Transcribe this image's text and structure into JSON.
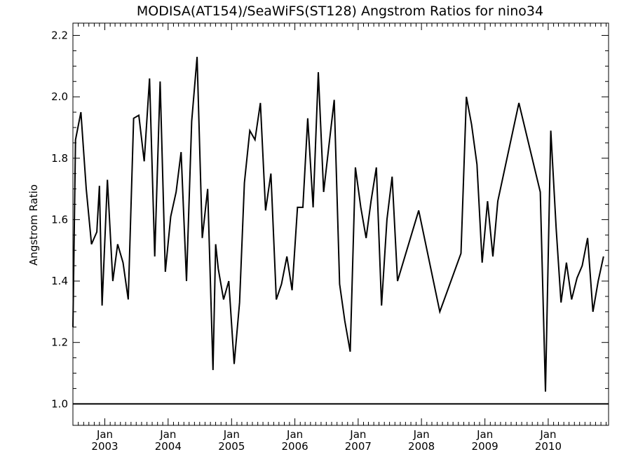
{
  "chart_data": {
    "type": "line",
    "title": "MODISA(AT154)/SeaWiFS(ST128)  Angstrom Ratios for nino34",
    "xlabel": "",
    "ylabel": "Angstrom Ratio",
    "x_unit": "date",
    "xlim": [
      "2002-07-01",
      "2010-12-15"
    ],
    "ylim": [
      0.93,
      2.24
    ],
    "y_ticks": [
      1.0,
      1.2,
      1.4,
      1.6,
      1.8,
      2.0,
      2.2
    ],
    "y_tick_labels": [
      "1.0",
      "1.2",
      "1.4",
      "1.6",
      "1.8",
      "2.0",
      "2.2"
    ],
    "x_ticks": [
      {
        "date": "2003-01-01",
        "month": "Jan",
        "year": "2003"
      },
      {
        "date": "2004-01-01",
        "month": "Jan",
        "year": "2004"
      },
      {
        "date": "2005-01-01",
        "month": "Jan",
        "year": "2005"
      },
      {
        "date": "2006-01-01",
        "month": "Jan",
        "year": "2006"
      },
      {
        "date": "2007-01-01",
        "month": "Jan",
        "year": "2007"
      },
      {
        "date": "2008-01-01",
        "month": "Jan",
        "year": "2008"
      },
      {
        "date": "2009-01-01",
        "month": "Jan",
        "year": "2009"
      },
      {
        "date": "2010-01-01",
        "month": "Jan",
        "year": "2010"
      }
    ],
    "reference_line": {
      "y": 1.0
    },
    "grid": false,
    "legend": "none",
    "series": [
      {
        "color": "#000000",
        "points": [
          [
            "2002-07-01",
            1.25
          ],
          [
            "2002-07-16",
            1.86
          ],
          [
            "2002-08-16",
            1.95
          ],
          [
            "2002-09-16",
            1.7
          ],
          [
            "2002-10-16",
            1.52
          ],
          [
            "2002-11-16",
            1.56
          ],
          [
            "2002-12-01",
            1.71
          ],
          [
            "2002-12-16",
            1.32
          ],
          [
            "2003-01-16",
            1.73
          ],
          [
            "2003-02-16",
            1.4
          ],
          [
            "2003-03-16",
            1.52
          ],
          [
            "2003-04-16",
            1.46
          ],
          [
            "2003-05-16",
            1.34
          ],
          [
            "2003-06-16",
            1.93
          ],
          [
            "2003-07-16",
            1.94
          ],
          [
            "2003-08-16",
            1.79
          ],
          [
            "2003-09-16",
            2.06
          ],
          [
            "2003-10-16",
            1.48
          ],
          [
            "2003-11-16",
            2.05
          ],
          [
            "2003-12-16",
            1.43
          ],
          [
            "2004-01-16",
            1.61
          ],
          [
            "2004-02-16",
            1.69
          ],
          [
            "2004-03-16",
            1.82
          ],
          [
            "2004-04-16",
            1.4
          ],
          [
            "2004-05-16",
            1.92
          ],
          [
            "2004-06-16",
            2.13
          ],
          [
            "2004-07-16",
            1.54
          ],
          [
            "2004-08-16",
            1.7
          ],
          [
            "2004-09-16",
            1.11
          ],
          [
            "2004-10-01",
            1.52
          ],
          [
            "2004-10-16",
            1.44
          ],
          [
            "2004-11-16",
            1.34
          ],
          [
            "2004-12-16",
            1.4
          ],
          [
            "2005-01-16",
            1.13
          ],
          [
            "2005-02-16",
            1.33
          ],
          [
            "2005-03-16",
            1.72
          ],
          [
            "2005-04-16",
            1.89
          ],
          [
            "2005-05-16",
            1.86
          ],
          [
            "2005-06-16",
            1.98
          ],
          [
            "2005-07-16",
            1.63
          ],
          [
            "2005-08-16",
            1.75
          ],
          [
            "2005-09-16",
            1.34
          ],
          [
            "2005-10-16",
            1.39
          ],
          [
            "2005-11-16",
            1.48
          ],
          [
            "2005-12-16",
            1.37
          ],
          [
            "2006-01-16",
            1.64
          ],
          [
            "2006-02-16",
            1.64
          ],
          [
            "2006-03-16",
            1.93
          ],
          [
            "2006-04-16",
            1.64
          ],
          [
            "2006-05-16",
            2.08
          ],
          [
            "2006-06-16",
            1.69
          ],
          [
            "2006-07-16",
            1.84
          ],
          [
            "2006-08-16",
            1.99
          ],
          [
            "2006-09-16",
            1.39
          ],
          [
            "2006-10-16",
            1.27
          ],
          [
            "2006-11-16",
            1.17
          ],
          [
            "2006-12-16",
            1.77
          ],
          [
            "2007-01-16",
            1.64
          ],
          [
            "2007-02-16",
            1.54
          ],
          [
            "2007-03-16",
            1.66
          ],
          [
            "2007-04-16",
            1.77
          ],
          [
            "2007-05-16",
            1.32
          ],
          [
            "2007-06-16",
            1.6
          ],
          [
            "2007-07-16",
            1.74
          ],
          [
            "2007-08-16",
            1.4
          ],
          [
            "2007-12-16",
            1.63
          ],
          [
            "2008-04-16",
            1.3
          ],
          [
            "2008-08-16",
            1.49
          ],
          [
            "2008-09-16",
            2.0
          ],
          [
            "2008-10-16",
            1.91
          ],
          [
            "2008-11-16",
            1.78
          ],
          [
            "2008-12-16",
            1.46
          ],
          [
            "2009-01-16",
            1.66
          ],
          [
            "2009-02-16",
            1.48
          ],
          [
            "2009-03-16",
            1.66
          ],
          [
            "2009-07-16",
            1.98
          ],
          [
            "2009-11-16",
            1.69
          ],
          [
            "2009-12-16",
            1.04
          ],
          [
            "2010-01-16",
            1.89
          ],
          [
            "2010-02-16",
            1.57
          ],
          [
            "2010-03-16",
            1.33
          ],
          [
            "2010-04-16",
            1.46
          ],
          [
            "2010-05-16",
            1.34
          ],
          [
            "2010-06-16",
            1.41
          ],
          [
            "2010-07-16",
            1.45
          ],
          [
            "2010-08-16",
            1.54
          ],
          [
            "2010-09-16",
            1.3
          ],
          [
            "2010-10-16",
            1.4
          ],
          [
            "2010-11-16",
            1.48
          ]
        ]
      }
    ]
  }
}
